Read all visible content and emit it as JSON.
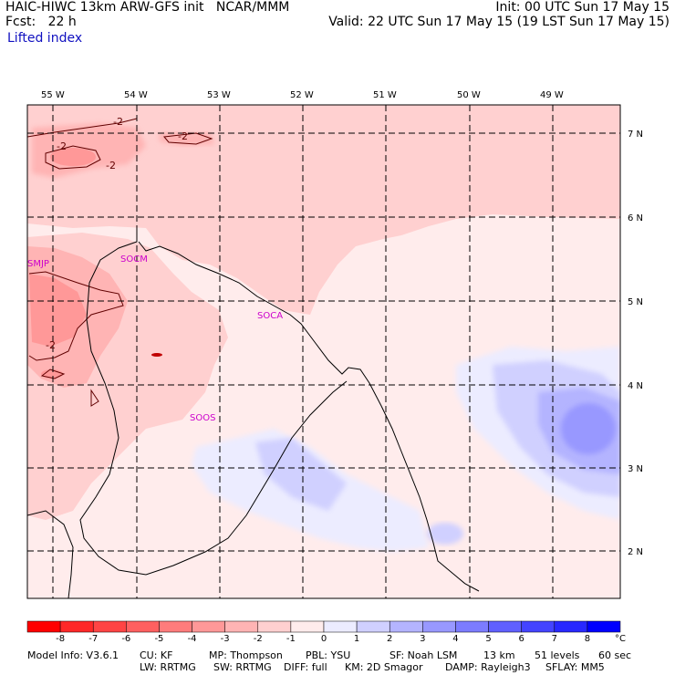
{
  "header": {
    "model_line": "HAIC-HIWC 13km ARW-GFS init   NCAR/MMM",
    "fcst_line": "Fcst:   22 h",
    "field_name": "Lifted index",
    "init_line": "Init: 00 UTC Sun 17 May 15",
    "valid_line": "Valid: 22 UTC Sun 17 May 15 (19 LST Sun 17 May 15)"
  },
  "map": {
    "lon_labels": [
      "55 W",
      "54 W",
      "53 W",
      "52 W",
      "51 W",
      "50 W",
      "49 W"
    ],
    "lat_labels": [
      "7 N",
      "6 N",
      "5 N",
      "4 N",
      "3 N",
      "2 N"
    ],
    "stations": [
      "SMJP",
      "SOCM",
      "SOCA",
      "SOOS"
    ],
    "contour_labels": [
      "-2",
      "-2",
      "-2",
      "-2",
      "-2"
    ]
  },
  "colorbar": {
    "ticks": [
      "-8",
      "-7",
      "-6",
      "-5",
      "-4",
      "-3",
      "-2",
      "-1",
      "0",
      "1",
      "2",
      "3",
      "4",
      "5",
      "6",
      "7",
      "8"
    ],
    "unit": "°C",
    "colors": [
      "#ff0000",
      "#ff2828",
      "#ff4444",
      "#ff6060",
      "#ff7c7c",
      "#ff9898",
      "#ffb4b4",
      "#ffd0d0",
      "#ffecec",
      "#ececff",
      "#d0d0ff",
      "#b4b4ff",
      "#9898ff",
      "#7c7cff",
      "#6060ff",
      "#4444ff",
      "#2828ff",
      "#0000ff"
    ]
  },
  "footer": {
    "line1": [
      "Model Info: V3.6.1",
      "CU: KF",
      "MP: Thompson",
      "PBL: YSU",
      "SF: Noah LSM",
      "13 km",
      "51 levels",
      "60 sec"
    ],
    "line2": [
      "LW: RRTMG",
      "SW: RRTMG",
      "DIFF: full",
      "KM: 2D Smagor",
      "DAMP: Rayleigh3",
      "SFLAY: MM5"
    ]
  }
}
